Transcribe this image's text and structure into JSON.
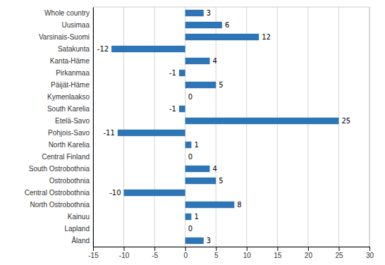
{
  "chart_data": {
    "type": "bar",
    "orientation": "horizontal",
    "categories": [
      "Åland",
      "Lapland",
      "Kainuu",
      "North Ostrobothnia",
      "Central Ostrobothnia",
      "Ostrobothnia",
      "South Ostrobothnia",
      "Central Finland",
      "North Karelia",
      "Pohjois-Savo",
      "Etelä-Savo",
      "South Karelia",
      "Kymenlaakso",
      "Päijät-Häme",
      "Pirkanmaa",
      "Kanta-Häme",
      "Satakunta",
      "Varsinais-Suomi",
      "Uusimaa",
      "Whole country"
    ],
    "values": [
      3,
      0,
      1,
      8,
      -10,
      5,
      4,
      0,
      1,
      -11,
      25,
      -1,
      0,
      5,
      -1,
      4,
      -12,
      12,
      6,
      3
    ],
    "color": "#2E75B6",
    "xlim": [
      -15,
      30
    ],
    "xticks": [
      -15,
      -10,
      -5,
      0,
      5,
      10,
      15,
      20,
      25,
      30
    ],
    "grid": true,
    "data_labels": true
  }
}
